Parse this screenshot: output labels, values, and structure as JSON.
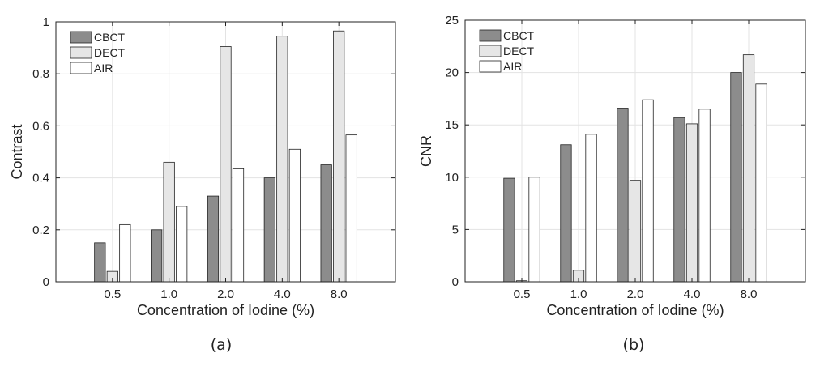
{
  "chart_data": [
    {
      "type": "bar",
      "caption": "(a)",
      "xlabel": "Concentration of Iodine (%)",
      "ylabel": "Contrast",
      "categories": [
        "0.5",
        "1.0",
        "2.0",
        "4.0",
        "8.0"
      ],
      "ylim": [
        0,
        1
      ],
      "yticks": [
        "0",
        "0.2",
        "0.4",
        "0.6",
        "0.8",
        "1"
      ],
      "grid": true,
      "legend_position": "top-left",
      "series": [
        {
          "name": "CBCT",
          "color": "#8c8c8c",
          "values": [
            0.15,
            0.2,
            0.33,
            0.4,
            0.45
          ]
        },
        {
          "name": "DECT",
          "color": "#e6e6e6",
          "values": [
            0.04,
            0.46,
            0.905,
            0.945,
            0.965
          ]
        },
        {
          "name": "AIR",
          "color": "#ffffff",
          "values": [
            0.22,
            0.29,
            0.435,
            0.51,
            0.565
          ]
        }
      ]
    },
    {
      "type": "bar",
      "caption": "(b)",
      "xlabel": "Concentration of Iodine (%)",
      "ylabel": "CNR",
      "categories": [
        "0.5",
        "1.0",
        "2.0",
        "4.0",
        "8.0"
      ],
      "ylim": [
        0,
        25
      ],
      "yticks": [
        "0",
        "5",
        "10",
        "15",
        "20",
        "25"
      ],
      "grid": true,
      "legend_position": "top-left",
      "series": [
        {
          "name": "CBCT",
          "color": "#8c8c8c",
          "values": [
            9.9,
            13.1,
            16.6,
            15.7,
            20.0
          ]
        },
        {
          "name": "DECT",
          "color": "#e6e6e6",
          "values": [
            0.1,
            1.1,
            9.7,
            15.1,
            21.7
          ]
        },
        {
          "name": "AIR",
          "color": "#ffffff",
          "values": [
            10.0,
            14.1,
            17.4,
            16.5,
            18.9
          ]
        }
      ]
    }
  ]
}
